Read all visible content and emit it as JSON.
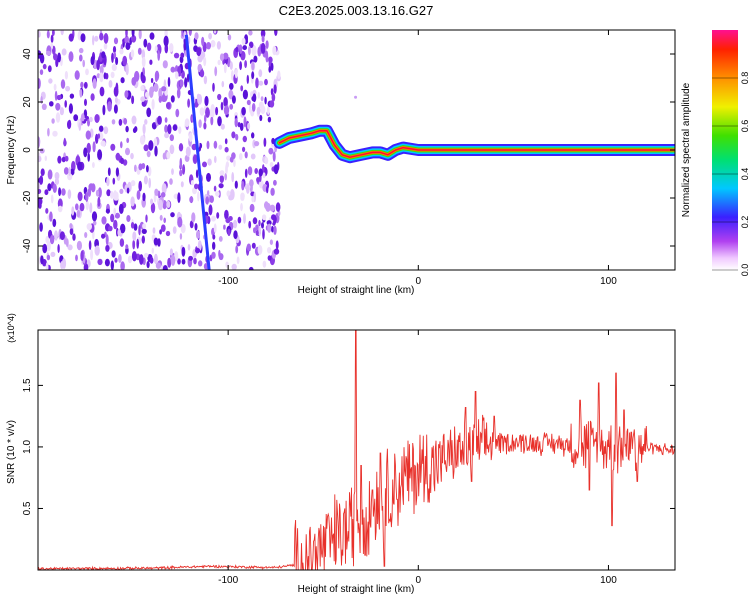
{
  "title": "C2E3.2025.003.13.16.G27",
  "chart_data": [
    {
      "type": "heatmap",
      "title": "C2E3.2025.003.13.16.G27",
      "xlabel": "Height of straight line (km)",
      "ylabel": "Frequency (Hz)",
      "xlim": [
        -200,
        135
      ],
      "ylim": [
        -50,
        50
      ],
      "xticks": [
        -100,
        0,
        100
      ],
      "yticks": [
        -40,
        -20,
        0,
        20,
        40
      ],
      "colorbar": {
        "label": "Normalized spectral amplitude",
        "range": [
          0.0,
          1.0
        ],
        "ticks": [
          0.0,
          0.2,
          0.4,
          0.6,
          0.8
        ],
        "colormap": "rainbow (white-purple-blue-cyan-green-yellow-orange-red-magenta)"
      },
      "noise_region": {
        "x_range": [
          -200,
          -73
        ],
        "color": "#7a2fe0"
      },
      "diagonal_trace": [
        [
          -122,
          48
        ],
        [
          -110,
          -50
        ]
      ],
      "ridge": {
        "x": [
          -73,
          -68,
          -62,
          -56,
          -52,
          -48,
          -44,
          -40,
          -36,
          -30,
          -24,
          -20,
          -16,
          -12,
          -8,
          0,
          20,
          40,
          60,
          80,
          100,
          120,
          135
        ],
        "y": [
          3,
          5,
          6,
          7,
          8,
          8,
          2,
          -2,
          -3,
          -2,
          -1,
          -1,
          -2,
          0,
          1,
          0,
          0,
          0,
          0,
          0,
          0,
          0,
          0
        ]
      }
    },
    {
      "type": "line",
      "xlabel": "Height of straight line (km)",
      "ylabel": "SNR (10 * v/v)",
      "y_multiplier": "(x10^4)",
      "xlim": [
        -200,
        135
      ],
      "ylim": [
        0,
        19500
      ],
      "xticks": [
        -100,
        0,
        100
      ],
      "yticks": [
        5000,
        10000,
        15000
      ],
      "yticklabels": [
        "0.5",
        "1.0",
        "1.5"
      ],
      "series": [
        {
          "color": "#e8312b",
          "x": [
            -200,
            -140,
            -110,
            -75,
            -60,
            -50,
            -42,
            -35,
            -30,
            -25,
            -20,
            -10,
            0,
            10,
            20,
            30,
            40,
            50,
            60,
            70,
            80,
            90,
            100,
            110,
            120,
            135
          ],
          "y": [
            100,
            150,
            300,
            200,
            500,
            1800,
            2800,
            3500,
            4500,
            5200,
            6000,
            7000,
            8000,
            8800,
            9500,
            10000,
            10300,
            10400,
            10300,
            10300,
            10200,
            10200,
            10100,
            10100,
            10000,
            9700
          ]
        }
      ]
    }
  ]
}
